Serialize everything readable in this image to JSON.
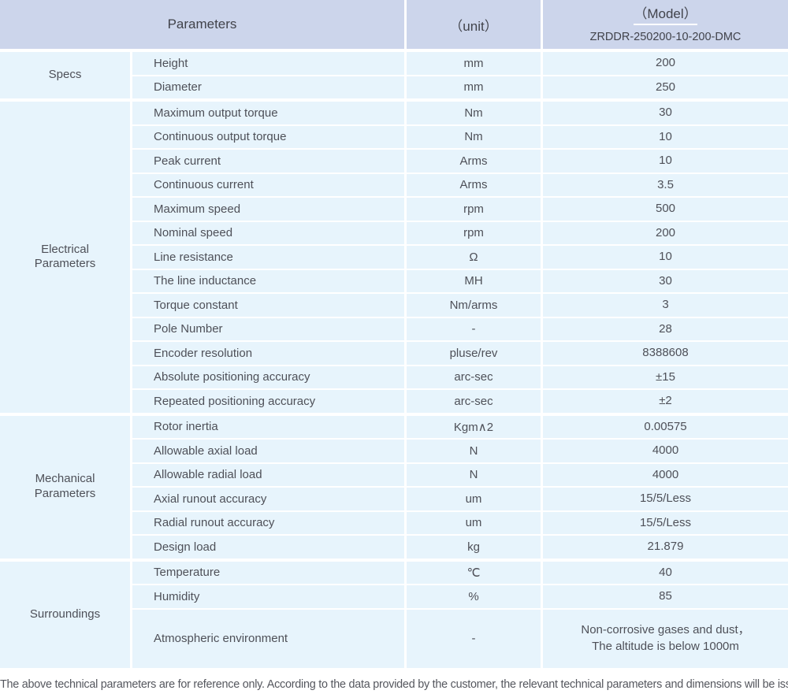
{
  "header": {
    "parameters_label": "Parameters",
    "unit_label": "（unit）",
    "model_label": "（Model）",
    "model_value": "ZRDDR-250200-10-200-DMC"
  },
  "colors": {
    "header_bg": "#ccd5eb",
    "row_bg": "#e7f4fc",
    "text": "#4e5058"
  },
  "sections": [
    {
      "label": "Specs",
      "rows": [
        {
          "name": "Height",
          "unit": "mm",
          "value": "200"
        },
        {
          "name": "Diameter",
          "unit": "mm",
          "value": "250"
        }
      ]
    },
    {
      "label": "Electrical\nParameters",
      "rows": [
        {
          "name": "Maximum output torque",
          "unit": "Nm",
          "value": "30"
        },
        {
          "name": "Continuous output torque",
          "unit": "Nm",
          "value": "10"
        },
        {
          "name": "Peak current",
          "unit": "Arms",
          "value": "10"
        },
        {
          "name": "Continuous current",
          "unit": "Arms",
          "value": "3.5"
        },
        {
          "name": "Maximum speed",
          "unit": "rpm",
          "value": "500"
        },
        {
          "name": "Nominal speed",
          "unit": "rpm",
          "value": "200"
        },
        {
          "name": "Line resistance",
          "unit": "Ω",
          "value": "10"
        },
        {
          "name": "The line inductance",
          "unit": "MH",
          "value": "30"
        },
        {
          "name": "Torque constant",
          "unit": "Nm/arms",
          "value": "3"
        },
        {
          "name": "Pole Number",
          "unit": "-",
          "value": "28"
        },
        {
          "name": "Encoder resolution",
          "unit": "pluse/rev",
          "value": "8388608"
        },
        {
          "name": "Absolute positioning accuracy",
          "unit": "arc-sec",
          "value": "±15"
        },
        {
          "name": "Repeated positioning accuracy",
          "unit": "arc-sec",
          "value": "±2"
        }
      ]
    },
    {
      "label": "Mechanical\nParameters",
      "rows": [
        {
          "name": "Rotor inertia",
          "unit": "Kgm∧2",
          "value": "0.00575"
        },
        {
          "name": "Allowable axial load",
          "unit": "N",
          "value": "4000"
        },
        {
          "name": "Allowable radial load",
          "unit": "N",
          "value": "4000"
        },
        {
          "name": "Axial runout accuracy",
          "unit": "um",
          "value": "15/5/Less"
        },
        {
          "name": "Radial runout accuracy",
          "unit": "um",
          "value": "15/5/Less"
        },
        {
          "name": "Design load",
          "unit": "kg",
          "value": "21.879"
        }
      ]
    },
    {
      "label": "Surroundings",
      "rows": [
        {
          "name": "Temperature",
          "unit": "℃",
          "value": "40"
        },
        {
          "name": "Humidity",
          "unit": "%",
          "value": "85"
        },
        {
          "name": "Atmospheric environment",
          "unit": "-",
          "value": "Non-corrosive gases and dust，\nThe altitude is below 1000m"
        }
      ]
    }
  ],
  "footer": {
    "note": "The above technical parameters are for reference only. According to the data provided by the customer, the relevant technical parameters and dimensions will be issued."
  }
}
